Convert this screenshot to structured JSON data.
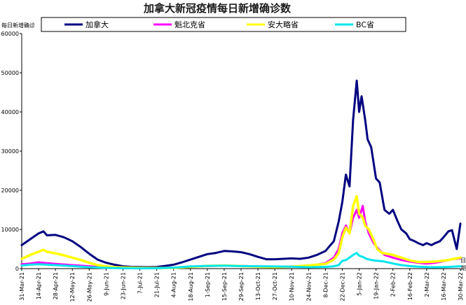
{
  "chart_data": {
    "type": "line",
    "title": "加拿大新冠疫情每日新增确诊数",
    "ylabel": "每日新增确诊",
    "xunit": [
      "日",
      "期"
    ],
    "ylim": [
      0,
      60000
    ],
    "yticks": [
      0,
      10000,
      20000,
      30000,
      40000,
      50000,
      60000
    ],
    "grid": false,
    "legend_position": "top",
    "x_range": [
      "2021-03-31",
      "2022-03-30"
    ],
    "xticks": [
      "31-Mar-21",
      "14-Apr-21",
      "28-Apr-21",
      "12-May-21",
      "26-May-21",
      "9-Jun-21",
      "23-Jun-21",
      "7-Jul-21",
      "21-Jul-21",
      "4-Aug-21",
      "18-Aug-21",
      "1-Sep-21",
      "15-Sep-21",
      "29-Sep-21",
      "13-Oct-21",
      "27-Oct-21",
      "10-Nov-21",
      "24-Nov-21",
      "8-Dec-21",
      "22-Dec-21",
      "5-Jan-22",
      "19-Jan-22",
      "2-Feb-22",
      "16-Feb-22",
      "2-Mar-22",
      "16-Mar-22",
      "30-Mar-22"
    ],
    "series": [
      {
        "name": "加拿大",
        "color": "#000080",
        "points": [
          [
            "2021-03-31",
            6000
          ],
          [
            "2021-04-07",
            7500
          ],
          [
            "2021-04-14",
            9000
          ],
          [
            "2021-04-18",
            9500
          ],
          [
            "2021-04-21",
            8500
          ],
          [
            "2021-04-28",
            8600
          ],
          [
            "2021-05-05",
            8000
          ],
          [
            "2021-05-12",
            7000
          ],
          [
            "2021-05-19",
            5500
          ],
          [
            "2021-05-26",
            3800
          ],
          [
            "2021-06-02",
            2300
          ],
          [
            "2021-06-09",
            1500
          ],
          [
            "2021-06-16",
            1000
          ],
          [
            "2021-06-23",
            600
          ],
          [
            "2021-06-30",
            450
          ],
          [
            "2021-07-07",
            400
          ],
          [
            "2021-07-14",
            380
          ],
          [
            "2021-07-21",
            420
          ],
          [
            "2021-07-28",
            700
          ],
          [
            "2021-08-04",
            1000
          ],
          [
            "2021-08-11",
            1600
          ],
          [
            "2021-08-18",
            2300
          ],
          [
            "2021-08-25",
            3000
          ],
          [
            "2021-09-01",
            3700
          ],
          [
            "2021-09-08",
            4000
          ],
          [
            "2021-09-15",
            4500
          ],
          [
            "2021-09-22",
            4400
          ],
          [
            "2021-09-29",
            4200
          ],
          [
            "2021-10-06",
            3700
          ],
          [
            "2021-10-13",
            3000
          ],
          [
            "2021-10-20",
            2400
          ],
          [
            "2021-10-27",
            2400
          ],
          [
            "2021-11-03",
            2500
          ],
          [
            "2021-11-10",
            2600
          ],
          [
            "2021-11-17",
            2500
          ],
          [
            "2021-11-24",
            2800
          ],
          [
            "2021-12-01",
            3500
          ],
          [
            "2021-12-08",
            4500
          ],
          [
            "2021-12-15",
            7000
          ],
          [
            "2021-12-19",
            12000
          ],
          [
            "2021-12-22",
            17000
          ],
          [
            "2021-12-25",
            24000
          ],
          [
            "2021-12-28",
            21000
          ],
          [
            "2021-12-31",
            38000
          ],
          [
            "2022-01-03",
            48000
          ],
          [
            "2022-01-05",
            40000
          ],
          [
            "2022-01-07",
            44000
          ],
          [
            "2022-01-10",
            38000
          ],
          [
            "2022-01-12",
            33000
          ],
          [
            "2022-01-15",
            31000
          ],
          [
            "2022-01-19",
            23000
          ],
          [
            "2022-01-22",
            22000
          ],
          [
            "2022-01-26",
            15000
          ],
          [
            "2022-01-30",
            14000
          ],
          [
            "2022-02-02",
            15000
          ],
          [
            "2022-02-06",
            12000
          ],
          [
            "2022-02-09",
            10000
          ],
          [
            "2022-02-13",
            9000
          ],
          [
            "2022-02-16",
            7500
          ],
          [
            "2022-02-20",
            7000
          ],
          [
            "2022-02-23",
            6500
          ],
          [
            "2022-02-27",
            6000
          ],
          [
            "2022-03-02",
            6500
          ],
          [
            "2022-03-06",
            6000
          ],
          [
            "2022-03-09",
            6500
          ],
          [
            "2022-03-13",
            7000
          ],
          [
            "2022-03-16",
            8000
          ],
          [
            "2022-03-20",
            9500
          ],
          [
            "2022-03-23",
            9800
          ],
          [
            "2022-03-27",
            5000
          ],
          [
            "2022-03-30",
            11500
          ]
        ]
      },
      {
        "name": "魁北克省",
        "color": "#ff00ff",
        "points": [
          [
            "2021-03-31",
            1100
          ],
          [
            "2021-04-07",
            1300
          ],
          [
            "2021-04-14",
            1600
          ],
          [
            "2021-04-21",
            1400
          ],
          [
            "2021-04-28",
            1200
          ],
          [
            "2021-05-12",
            900
          ],
          [
            "2021-05-26",
            600
          ],
          [
            "2021-06-09",
            250
          ],
          [
            "2021-06-23",
            120
          ],
          [
            "2021-07-07",
            90
          ],
          [
            "2021-07-21",
            120
          ],
          [
            "2021-08-04",
            250
          ],
          [
            "2021-08-18",
            450
          ],
          [
            "2021-09-01",
            650
          ],
          [
            "2021-09-15",
            750
          ],
          [
            "2021-09-29",
            700
          ],
          [
            "2021-10-13",
            550
          ],
          [
            "2021-10-27",
            450
          ],
          [
            "2021-11-10",
            550
          ],
          [
            "2021-11-24",
            700
          ],
          [
            "2021-12-08",
            1400
          ],
          [
            "2021-12-15",
            2800
          ],
          [
            "2021-12-19",
            5000
          ],
          [
            "2021-12-22",
            9000
          ],
          [
            "2021-12-25",
            11000
          ],
          [
            "2021-12-28",
            9000
          ],
          [
            "2021-12-31",
            13000
          ],
          [
            "2022-01-03",
            15000
          ],
          [
            "2022-01-05",
            13000
          ],
          [
            "2022-01-08",
            16000
          ],
          [
            "2022-01-10",
            12000
          ],
          [
            "2022-01-13",
            9000
          ],
          [
            "2022-01-17",
            6500
          ],
          [
            "2022-01-21",
            5000
          ],
          [
            "2022-01-26",
            3500
          ],
          [
            "2022-02-02",
            2800
          ],
          [
            "2022-02-09",
            2200
          ],
          [
            "2022-02-16",
            1800
          ],
          [
            "2022-02-23",
            1500
          ],
          [
            "2022-03-02",
            1300
          ],
          [
            "2022-03-09",
            1500
          ],
          [
            "2022-03-16",
            1900
          ],
          [
            "2022-03-23",
            2400
          ],
          [
            "2022-03-30",
            2600
          ]
        ]
      },
      {
        "name": "安大略省",
        "color": "#ffff00",
        "points": [
          [
            "2021-03-31",
            2500
          ],
          [
            "2021-04-07",
            3500
          ],
          [
            "2021-04-14",
            4300
          ],
          [
            "2021-04-18",
            4800
          ],
          [
            "2021-04-21",
            4300
          ],
          [
            "2021-04-28",
            3900
          ],
          [
            "2021-05-05",
            3400
          ],
          [
            "2021-05-12",
            2800
          ],
          [
            "2021-05-19",
            2200
          ],
          [
            "2021-05-26",
            1500
          ],
          [
            "2021-06-02",
            900
          ],
          [
            "2021-06-09",
            550
          ],
          [
            "2021-06-16",
            380
          ],
          [
            "2021-06-23",
            280
          ],
          [
            "2021-07-07",
            180
          ],
          [
            "2021-07-21",
            160
          ],
          [
            "2021-08-04",
            200
          ],
          [
            "2021-08-18",
            450
          ],
          [
            "2021-09-01",
            700
          ],
          [
            "2021-09-15",
            800
          ],
          [
            "2021-09-29",
            650
          ],
          [
            "2021-10-13",
            500
          ],
          [
            "2021-10-27",
            380
          ],
          [
            "2021-11-10",
            520
          ],
          [
            "2021-11-24",
            800
          ],
          [
            "2021-12-08",
            1200
          ],
          [
            "2021-12-15",
            2300
          ],
          [
            "2021-12-19",
            4000
          ],
          [
            "2021-12-22",
            8000
          ],
          [
            "2021-12-25",
            10500
          ],
          [
            "2021-12-28",
            9000
          ],
          [
            "2021-12-31",
            16000
          ],
          [
            "2022-01-03",
            18500
          ],
          [
            "2022-01-05",
            14000
          ],
          [
            "2022-01-08",
            13000
          ],
          [
            "2022-01-10",
            11000
          ],
          [
            "2022-01-13",
            10000
          ],
          [
            "2022-01-16",
            8000
          ],
          [
            "2022-01-20",
            5000
          ],
          [
            "2022-01-24",
            4000
          ],
          [
            "2022-02-02",
            3500
          ],
          [
            "2022-02-09",
            2800
          ],
          [
            "2022-02-16",
            2100
          ],
          [
            "2022-02-23",
            1700
          ],
          [
            "2022-03-02",
            1700
          ],
          [
            "2022-03-09",
            1800
          ],
          [
            "2022-03-16",
            2000
          ],
          [
            "2022-03-23",
            2400
          ],
          [
            "2022-03-30",
            2800
          ]
        ]
      },
      {
        "name": "BC省",
        "color": "#00e5ee",
        "points": [
          [
            "2021-03-31",
            800
          ],
          [
            "2021-04-07",
            1000
          ],
          [
            "2021-04-14",
            1100
          ],
          [
            "2021-04-21",
            1000
          ],
          [
            "2021-04-28",
            900
          ],
          [
            "2021-05-12",
            650
          ],
          [
            "2021-05-26",
            350
          ],
          [
            "2021-06-09",
            200
          ],
          [
            "2021-06-23",
            100
          ],
          [
            "2021-07-07",
            70
          ],
          [
            "2021-07-21",
            110
          ],
          [
            "2021-08-04",
            250
          ],
          [
            "2021-08-18",
            550
          ],
          [
            "2021-09-01",
            700
          ],
          [
            "2021-09-15",
            750
          ],
          [
            "2021-09-29",
            650
          ],
          [
            "2021-10-13",
            600
          ],
          [
            "2021-10-27",
            550
          ],
          [
            "2021-11-10",
            500
          ],
          [
            "2021-11-24",
            350
          ],
          [
            "2021-12-08",
            450
          ],
          [
            "2021-12-15",
            600
          ],
          [
            "2021-12-19",
            900
          ],
          [
            "2021-12-22",
            2000
          ],
          [
            "2021-12-25",
            2200
          ],
          [
            "2021-12-28",
            2800
          ],
          [
            "2021-12-31",
            3500
          ],
          [
            "2022-01-03",
            4000
          ],
          [
            "2022-01-05",
            3300
          ],
          [
            "2022-01-08",
            3000
          ],
          [
            "2022-01-11",
            2500
          ],
          [
            "2022-01-15",
            2200
          ],
          [
            "2022-01-20",
            2000
          ],
          [
            "2022-01-26",
            1800
          ],
          [
            "2022-02-02",
            1300
          ],
          [
            "2022-02-09",
            900
          ],
          [
            "2022-02-16",
            650
          ],
          [
            "2022-02-23",
            500
          ],
          [
            "2022-03-02",
            400
          ],
          [
            "2022-03-09",
            350
          ],
          [
            "2022-03-16",
            400
          ],
          [
            "2022-03-23",
            500
          ],
          [
            "2022-03-30",
            600
          ]
        ]
      }
    ]
  }
}
